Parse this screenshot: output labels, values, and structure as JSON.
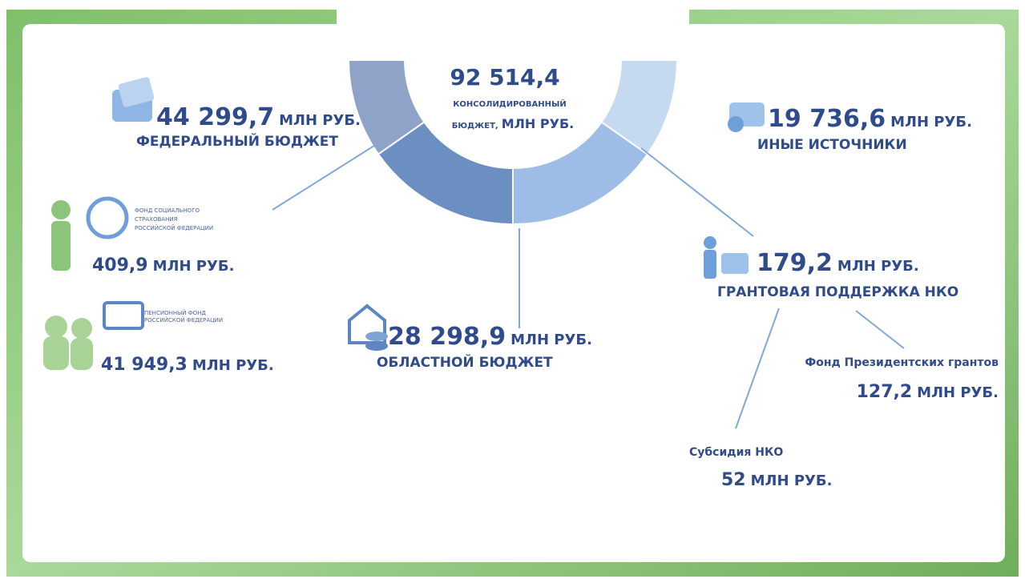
{
  "center": {
    "value": "92 514,4",
    "label_1": "КОНСОЛИДИРОВАННЫЙ",
    "label_2": "БЮДЖЕТ,",
    "unit": "МЛН РУБ."
  },
  "federal": {
    "value": "44 299,7",
    "unit": "МЛН РУБ.",
    "label": "ФЕДЕРАЛЬНЫЙ БЮДЖЕТ"
  },
  "other": {
    "value": "19 736,6",
    "unit": "МЛН РУБ.",
    "label": "ИНЫЕ ИСТОЧНИКИ"
  },
  "regional": {
    "value": "28 298,9",
    "unit": "МЛН РУБ.",
    "label": "ОБЛАСТНОЙ БЮДЖЕТ"
  },
  "grants": {
    "value": "179,2",
    "unit": "МЛН РУБ.",
    "label": "ГРАНТОВАЯ ПОДДЕРЖКА НКО"
  },
  "social_fund": {
    "logo": [
      "ФОНД СОЦИАЛЬНОГО",
      "СТРАХОВАНИЯ",
      "РОССИЙСКОЙ ФЕДЕРАЦИИ"
    ],
    "value": "409,9",
    "unit": "МЛН РУБ."
  },
  "pension_fund": {
    "logo": [
      "ПЕНСИОННЫЙ ФОНД",
      "РОССИЙСКОЙ ФЕДЕРАЦИИ"
    ],
    "value": "41 949,3",
    "unit": "МЛН РУБ."
  },
  "presidential": {
    "label": "Фонд Президентских грантов",
    "value": "127,2",
    "unit": "МЛН РУБ."
  },
  "subsidy": {
    "label": "Субсидия НКО",
    "value": "52",
    "unit": "МЛН РУБ."
  }
}
